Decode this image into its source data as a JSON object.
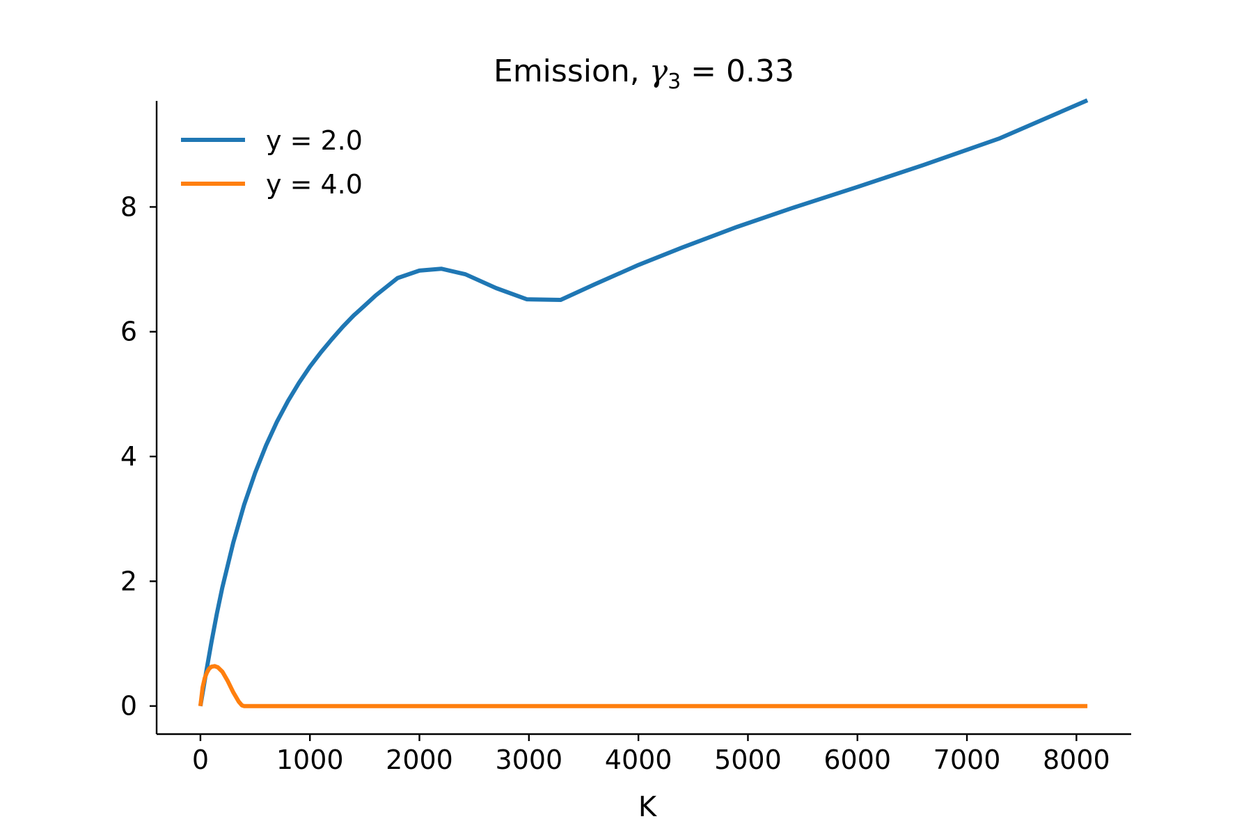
{
  "chart_data": {
    "type": "line",
    "title": {
      "prefix": "Emission, ",
      "symbol": "γ",
      "subscript": "3",
      "suffix": " = 0.33"
    },
    "xlabel": "K",
    "ylabel": "",
    "xlim": [
      -400,
      8500
    ],
    "ylim": [
      -0.45,
      9.7
    ],
    "xticks": [
      0,
      1000,
      2000,
      3000,
      4000,
      5000,
      6000,
      7000,
      8000
    ],
    "yticks": [
      0,
      2,
      4,
      6,
      8
    ],
    "grid": false,
    "legend": "top-left",
    "series": [
      {
        "name": "y = 2.0",
        "color": "#1f77b4",
        "x": [
          0,
          50,
          100,
          150,
          200,
          300,
          400,
          500,
          600,
          700,
          800,
          900,
          1000,
          1100,
          1200,
          1300,
          1400,
          1500,
          1600,
          1700,
          1800,
          2000,
          2200,
          2420,
          2700,
          2980,
          3290,
          3600,
          4000,
          4400,
          4900,
          5400,
          6000,
          6600,
          7300,
          8100
        ],
        "y": [
          0,
          0.52,
          1.02,
          1.48,
          1.9,
          2.62,
          3.23,
          3.74,
          4.18,
          4.56,
          4.89,
          5.18,
          5.44,
          5.67,
          5.88,
          6.08,
          6.26,
          6.42,
          6.58,
          6.72,
          6.86,
          6.98,
          7.01,
          6.92,
          6.7,
          6.52,
          6.51,
          6.76,
          7.07,
          7.35,
          7.68,
          7.98,
          8.32,
          8.67,
          9.1,
          9.71
        ]
      },
      {
        "name": "y = 4.0",
        "color": "#ff7f0e",
        "x": [
          0,
          20,
          40,
          60,
          80,
          100,
          130,
          160,
          200,
          250,
          300,
          350,
          380,
          400,
          500,
          1000,
          2000,
          3000,
          4000,
          5000,
          6000,
          7000,
          8100
        ],
        "y": [
          0,
          0.3,
          0.45,
          0.54,
          0.6,
          0.63,
          0.64,
          0.62,
          0.55,
          0.4,
          0.22,
          0.07,
          0.01,
          0,
          0,
          0,
          0,
          0,
          0,
          0,
          0,
          0,
          0
        ]
      }
    ]
  }
}
